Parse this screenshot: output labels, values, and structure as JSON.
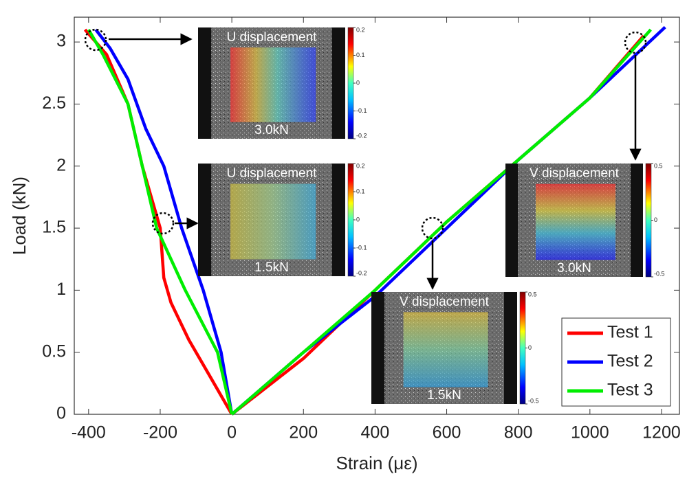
{
  "chart_data": {
    "type": "line",
    "x_label": "Strain (με)",
    "y_label": "Load (kN)",
    "xlim": [
      -440,
      1250
    ],
    "ylim": [
      0,
      3.2
    ],
    "xticks": [
      -400,
      -200,
      0,
      200,
      400,
      600,
      800,
      1000,
      1200
    ],
    "yticks": [
      0,
      0.5,
      1,
      1.5,
      2,
      2.5,
      3
    ],
    "legend": "lower right",
    "series": [
      {
        "name": "Test 1",
        "color": "#ff0000",
        "x": [
          0,
          -60,
          -120,
          -170,
          -190,
          -200,
          -250,
          -290,
          -350,
          -410,
          null,
          0,
          200,
          400,
          600,
          800,
          1000,
          1150
        ],
        "values": [
          0,
          0.3,
          0.6,
          0.9,
          1.1,
          1.5,
          2.0,
          2.5,
          2.9,
          3.1,
          null,
          0,
          0.45,
          1.0,
          1.55,
          2.05,
          2.55,
          3.05
        ]
      },
      {
        "name": "Test 2",
        "color": "#0000ff",
        "x": [
          0,
          -30,
          -80,
          -140,
          -190,
          -240,
          -290,
          -340,
          -380,
          null,
          0,
          200,
          400,
          600,
          800,
          1000,
          1210
        ],
        "values": [
          0,
          0.5,
          1.0,
          1.5,
          2.0,
          2.3,
          2.7,
          2.95,
          3.1,
          null,
          0,
          0.5,
          0.95,
          1.5,
          2.05,
          2.55,
          3.12
        ]
      },
      {
        "name": "Test 3",
        "color": "#00ee00",
        "x": [
          0,
          -40,
          -130,
          -210,
          -250,
          -290,
          -360,
          -400,
          null,
          0,
          200,
          400,
          600,
          800,
          1000,
          1170
        ],
        "values": [
          0,
          0.5,
          1.0,
          1.5,
          2.0,
          2.5,
          2.9,
          3.1,
          null,
          0,
          0.5,
          1.0,
          1.55,
          2.05,
          2.55,
          3.1
        ]
      }
    ],
    "insets": [
      {
        "title": "U displacement",
        "load": "3.0kN",
        "colorbar_ticks": [
          0.2,
          0.1,
          0,
          -0.1,
          -0.2
        ]
      },
      {
        "title": "U displacement",
        "load": "1.5kN",
        "colorbar_ticks": [
          0.2,
          0.1,
          0,
          -0.1,
          -0.2
        ]
      },
      {
        "title": "V displacement",
        "load": "3.0kN",
        "colorbar_ticks": [
          0.5,
          0,
          -0.5
        ]
      },
      {
        "title": "V displacement",
        "load": "1.5kN",
        "colorbar_ticks": [
          0.5,
          0,
          -0.5
        ]
      }
    ]
  }
}
